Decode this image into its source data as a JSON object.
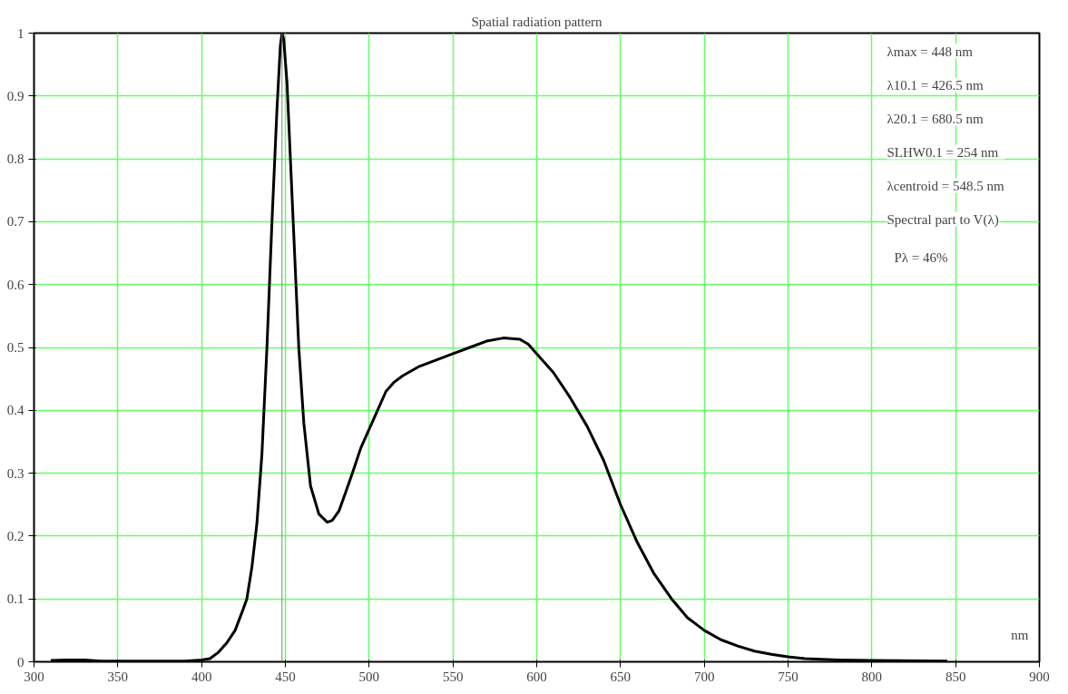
{
  "chart_data": {
    "type": "line",
    "title": "Spatial radiation pattern",
    "xlabel": "nm",
    "x": [
      310,
      320,
      330,
      340,
      390,
      400,
      405,
      410,
      415,
      420,
      425,
      427,
      430,
      433,
      436,
      439,
      442,
      445,
      447,
      448,
      449,
      451,
      453,
      455,
      458,
      461,
      465,
      470,
      475,
      478,
      482,
      486,
      490,
      495,
      500,
      505,
      510,
      515,
      520,
      530,
      540,
      550,
      560,
      570,
      580,
      590,
      595,
      600,
      610,
      620,
      630,
      640,
      650,
      660,
      670,
      680.5,
      690,
      700,
      710,
      720,
      730,
      740,
      750,
      760,
      780,
      800,
      845
    ],
    "series": [
      {
        "color": "#000000",
        "values": [
          0.002,
          0.003,
          0.003,
          0.001,
          0.001,
          0.003,
          0.005,
          0.015,
          0.03,
          0.05,
          0.085,
          0.1,
          0.15,
          0.22,
          0.33,
          0.5,
          0.7,
          0.88,
          0.98,
          1.0,
          0.99,
          0.92,
          0.8,
          0.68,
          0.5,
          0.38,
          0.28,
          0.235,
          0.222,
          0.225,
          0.24,
          0.27,
          0.3,
          0.34,
          0.37,
          0.4,
          0.43,
          0.445,
          0.455,
          0.47,
          0.48,
          0.49,
          0.5,
          0.51,
          0.515,
          0.513,
          0.505,
          0.49,
          0.46,
          0.42,
          0.375,
          0.32,
          0.25,
          0.19,
          0.14,
          0.1,
          0.07,
          0.05,
          0.035,
          0.025,
          0.017,
          0.012,
          0.008,
          0.005,
          0.003,
          0.002,
          0.001
        ]
      }
    ],
    "xlim": [
      300,
      900
    ],
    "ylim": [
      0,
      1
    ],
    "xticks": [
      300,
      350,
      400,
      450,
      500,
      550,
      600,
      650,
      700,
      750,
      800,
      850,
      900
    ],
    "yticks": [
      0,
      0.1,
      0.2,
      0.3,
      0.4,
      0.5,
      0.6,
      0.7,
      0.8,
      0.9,
      1
    ],
    "grid": true,
    "marker": "none",
    "line_style": "solid",
    "ref_lines": [
      {
        "axis": "x",
        "value": 448,
        "label": null,
        "color": "#808080",
        "line_style": "solid"
      }
    ],
    "annotations": [
      "λmax = 448      nm",
      "λ10.1 = 426.5   nm",
      "λ20.1 = 680.5   nm",
      "SLHW0.1 = 254   nm",
      "λcentroid  = 548.5   nm",
      "Spectral part to V(λ)",
      "Pλ = 46%"
    ]
  }
}
